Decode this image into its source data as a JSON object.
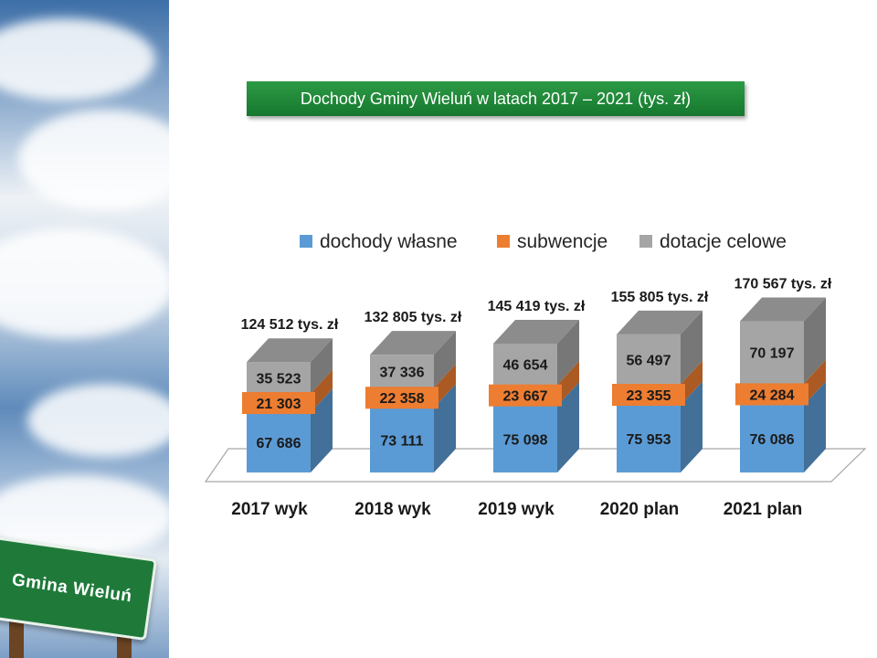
{
  "sign_text": "Gmina Wieluń",
  "chart_data": {
    "type": "bar",
    "stacked": true,
    "title": "Dochody Gminy Wieluń w latach 2017 – 2021 (tys. zł)",
    "categories": [
      "2017 wyk",
      "2018 wyk",
      "2019 wyk",
      "2020 plan",
      "2021 plan"
    ],
    "series": [
      {
        "name": "dochody własne",
        "color": "#5b9bd5",
        "values": [
          67686,
          73111,
          75098,
          75953,
          76086
        ],
        "labels": [
          "67 686",
          "73 111",
          "75 098",
          "75 953",
          "76 086"
        ]
      },
      {
        "name": "subwencje",
        "color": "#ed7d31",
        "values": [
          21303,
          22358,
          23667,
          23355,
          24284
        ],
        "labels": [
          "21 303",
          "22 358",
          "23 667",
          "23 355",
          "24 284"
        ]
      },
      {
        "name": "dotacje celowe",
        "color": "#a5a5a5",
        "values": [
          35523,
          37336,
          46654,
          56497,
          70197
        ],
        "labels": [
          "35 523",
          "37 336",
          "46 654",
          "56 497",
          "70 197"
        ]
      }
    ],
    "totals": [
      "124 512 tys. zł",
      "132 805 tys. zł",
      "145 419 tys. zł",
      "155 805 tys. zł",
      "170 567 tys. zł"
    ],
    "legend_position": "top",
    "grid": false
  }
}
